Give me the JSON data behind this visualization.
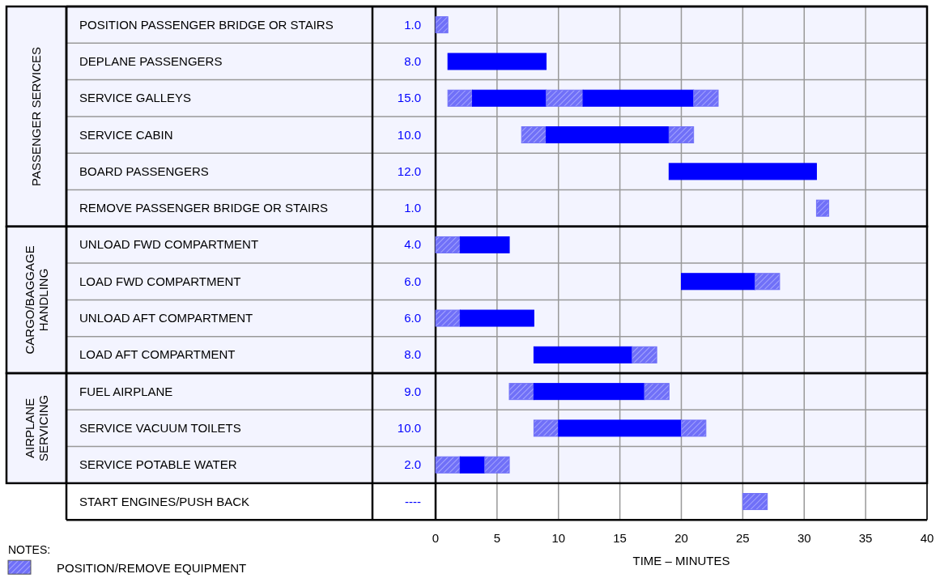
{
  "chart_data": {
    "type": "bar",
    "orientation": "horizontal",
    "categories": [
      "POSITION PASSENGER BRIDGE OR STAIRS",
      "DEPLANE PASSENGERS",
      "SERVICE GALLEYS",
      "SERVICE CABIN",
      "BOARD PASSENGERS",
      "REMOVE PASSENGER BRIDGE OR STAIRS",
      "UNLOAD FWD COMPARTMENT",
      "LOAD FWD COMPARTMENT",
      "UNLOAD AFT COMPARTMENT",
      "LOAD AFT COMPARTMENT",
      "FUEL AIRPLANE",
      "SERVICE VACUUM TOILETS",
      "SERVICE POTABLE WATER",
      "START ENGINES/PUSH BACK"
    ],
    "annotations": [
      "1.0",
      "8.0",
      "15.0",
      "10.0",
      "12.0",
      "1.0",
      "4.0",
      "6.0",
      "6.0",
      "8.0",
      "9.0",
      "10.0",
      "2.0",
      "----"
    ],
    "bands": [
      {
        "axis": "y",
        "from": "POSITION PASSENGER BRIDGE OR STAIRS",
        "to": "REMOVE PASSENGER BRIDGE OR STAIRS",
        "label": "PASSENGER SERVICES",
        "color": "#f3f4ff"
      },
      {
        "axis": "y",
        "from": "UNLOAD FWD COMPARTMENT",
        "to": "LOAD AFT COMPARTMENT",
        "label": "CARGO/BAGGAGE HANDLING",
        "color": "#f3f4ff"
      },
      {
        "axis": "y",
        "from": "FUEL AIRPLANE",
        "to": "SERVICE POTABLE WATER",
        "label": "AIRPLANE SERVICING",
        "color": "#f3f4ff"
      }
    ],
    "xlim": [
      0,
      40
    ],
    "xticks": [
      0,
      5,
      10,
      15,
      20,
      25,
      30,
      35,
      40
    ],
    "grid": "x",
    "xlabel": "TIME – MINUTES",
    "legend": "bottom left",
    "legend_title": "NOTES:",
    "series": [
      {
        "name": "POSITION/REMOVE EQUIPMENT",
        "color": "#7070f8",
        "base": [
          0,
          null,
          1,
          7,
          null,
          31,
          0,
          null,
          0,
          null,
          6,
          8,
          0,
          25
        ],
        "values": [
          1,
          null,
          2,
          2,
          null,
          1,
          2,
          null,
          2,
          null,
          2,
          2,
          2,
          2
        ]
      },
      {
        "color": "#0000ff",
        "base": [
          null,
          1,
          3,
          9,
          19,
          null,
          2,
          20,
          2,
          8,
          8,
          10,
          2,
          null
        ],
        "values": [
          null,
          8,
          6,
          10,
          12,
          null,
          4,
          6,
          6,
          8,
          9,
          10,
          2,
          null
        ]
      },
      {
        "color": "#7070f8",
        "base": [
          null,
          null,
          9,
          19,
          null,
          null,
          null,
          26,
          null,
          16,
          17,
          20,
          4,
          null
        ],
        "values": [
          null,
          null,
          3,
          2,
          null,
          null,
          null,
          2,
          null,
          2,
          2,
          2,
          2,
          null
        ]
      },
      {
        "color": "#0000ff",
        "base": [
          null,
          null,
          12,
          null,
          null,
          null,
          null,
          null,
          null,
          null,
          null,
          null,
          null,
          null
        ],
        "values": [
          null,
          null,
          9,
          null,
          null,
          null,
          null,
          null,
          null,
          null,
          null,
          null,
          null,
          null
        ]
      },
      {
        "color": "#7070f8",
        "base": [
          null,
          null,
          21,
          null,
          null,
          null,
          null,
          null,
          null,
          null,
          null,
          null,
          null,
          null
        ],
        "values": [
          null,
          null,
          2,
          null,
          null,
          null,
          null,
          null,
          null,
          null,
          null,
          null,
          null,
          null
        ]
      }
    ]
  }
}
